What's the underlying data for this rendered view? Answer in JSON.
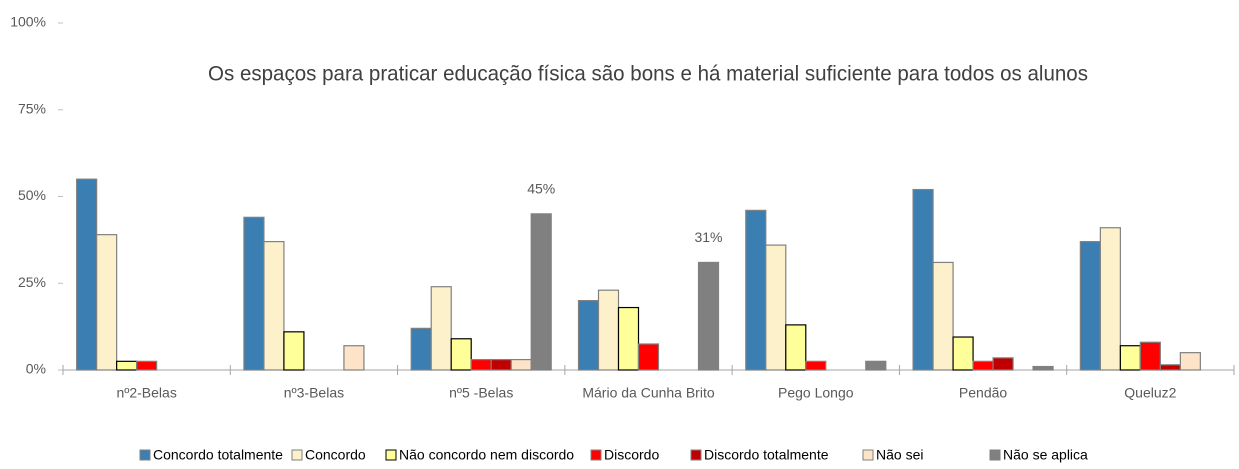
{
  "chart_data": {
    "type": "bar",
    "title": "Os espaços para praticar educação física são bons e há material suficiente para todos os alunos",
    "categories": [
      "nº2-Belas",
      "nº3-Belas",
      "nº5 -Belas",
      "Mário da Cunha Brito",
      "Pego Longo",
      "Pendão",
      "Queluz2"
    ],
    "series": [
      {
        "name": "Concordo totalmente",
        "color": "#3b7fb2",
        "values": [
          55,
          44,
          12,
          20,
          46,
          52,
          37
        ]
      },
      {
        "name": "Concordo",
        "color": "#fdf1cc",
        "values": [
          39,
          37,
          24,
          23,
          36,
          31,
          41
        ]
      },
      {
        "name": "Não concordo nem discordo",
        "color": "#ffff99",
        "values": [
          2.5,
          11,
          9,
          18,
          13,
          9.5,
          7
        ]
      },
      {
        "name": "Discordo",
        "color": "#ff0000",
        "values": [
          2.5,
          0,
          3,
          7.5,
          2.5,
          2.5,
          8
        ]
      },
      {
        "name": "Discordo totalmente",
        "color": "#c00000",
        "values": [
          0,
          0,
          3,
          0,
          0,
          3.5,
          1.5
        ]
      },
      {
        "name": "Não sei",
        "color": "#fde3c8",
        "values": [
          0,
          7,
          3,
          0,
          0,
          0,
          5
        ]
      },
      {
        "name": "Não se aplica",
        "color": "#808080",
        "values": [
          0,
          0,
          45,
          31,
          2.5,
          1,
          0
        ],
        "value_labels": [
          null,
          null,
          "45%",
          "31%",
          null,
          null,
          null
        ]
      }
    ],
    "ylim": [
      0,
      100
    ],
    "yticks": [
      {
        "value": 0,
        "label": "0%"
      },
      {
        "value": 25,
        "label": "25%"
      },
      {
        "value": 50,
        "label": "50%"
      },
      {
        "value": 75,
        "label": "75%"
      },
      {
        "value": 100,
        "label": "100%"
      }
    ],
    "legend": "bottom"
  }
}
